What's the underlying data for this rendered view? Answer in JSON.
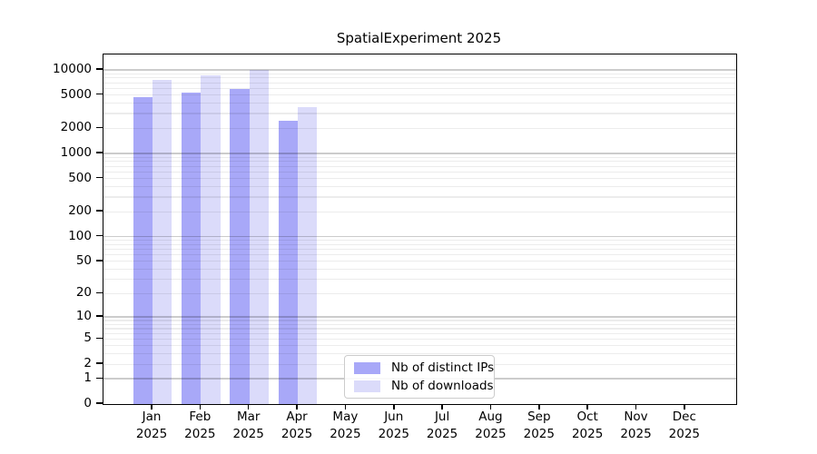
{
  "chart_data": {
    "type": "bar",
    "title": "SpatialExperiment 2025",
    "categories": [
      "Jan 2025",
      "Feb 2025",
      "Mar 2025",
      "Apr 2025",
      "May 2025",
      "Jun 2025",
      "Jul 2025",
      "Aug 2025",
      "Sep 2025",
      "Oct 2025",
      "Nov 2025",
      "Dec 2025"
    ],
    "series": [
      {
        "name": "Nb of distinct IPs",
        "color": "#A8A8F8",
        "values": [
          4700,
          5300,
          5900,
          2480,
          null,
          null,
          null,
          null,
          null,
          null,
          null,
          null
        ]
      },
      {
        "name": "Nb of downloads",
        "color": "#DBDBFA",
        "values": [
          7600,
          8700,
          9900,
          3620,
          null,
          null,
          null,
          null,
          null,
          null,
          null,
          null
        ]
      }
    ],
    "yticks": [
      0,
      1,
      2,
      5,
      10,
      20,
      50,
      100,
      200,
      500,
      1000,
      2000,
      5000,
      10000
    ],
    "yscale": "log10(value+1)",
    "ylim": [
      0,
      12000
    ],
    "xlabel": "",
    "ylabel": "",
    "grid": "horizontal log gridlines (minor at 2-9 per decade, major at powers of 10), drawn over bars",
    "legend_position": "inside bottom-center"
  }
}
